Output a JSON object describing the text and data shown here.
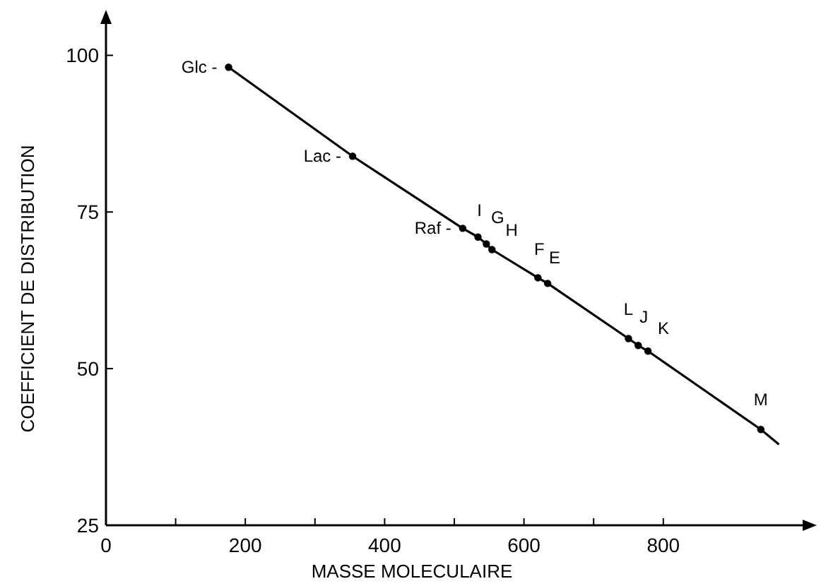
{
  "chart_data": {
    "type": "scatter",
    "xlabel": "MASSE MOLECULAIRE",
    "ylabel": "COEFFICIENT DE DISTRIBUTION",
    "xlim": [
      0,
      1000
    ],
    "ylim": [
      25,
      105
    ],
    "xticks": [
      0,
      {
        "value": 100,
        "label": null
      },
      200,
      {
        "value": 300,
        "label": null
      },
      400,
      {
        "value": 500,
        "label": null
      },
      600,
      {
        "value": 700,
        "label": null
      },
      800
    ],
    "yticks": [
      25,
      50,
      75,
      100
    ],
    "grid": false,
    "series": [
      {
        "type": "line",
        "marker": "none",
        "color": "#000000",
        "x": [
          176,
          354,
          512,
          534,
          546,
          554,
          620,
          634,
          750,
          764,
          778,
          940,
          966
        ],
        "values": [
          98.1,
          83.9,
          72.4,
          71.0,
          69.9,
          69.0,
          64.5,
          63.6,
          54.8,
          53.7,
          52.8,
          40.3,
          37.9
        ]
      },
      {
        "marker": "circle",
        "color": "#000000",
        "x": [
          176,
          354,
          512,
          534,
          546,
          554,
          620,
          634,
          750,
          764,
          778,
          940
        ],
        "values": [
          98.1,
          83.9,
          72.4,
          71.0,
          69.9,
          69.0,
          64.5,
          63.6,
          54.8,
          53.7,
          52.8,
          40.3
        ]
      }
    ],
    "annotations": [
      {
        "text": "Glc -",
        "x": 176,
        "y": 98.1
      },
      {
        "text": "Lac -",
        "x": 354,
        "y": 83.9
      },
      {
        "text": "Raf -",
        "x": 512,
        "y": 72.4
      },
      {
        "text": "I",
        "x": 534,
        "y": 71.0
      },
      {
        "text": "G",
        "x": 546,
        "y": 69.9
      },
      {
        "text": "H",
        "x": 554,
        "y": 69.0
      },
      {
        "text": "F",
        "x": 620,
        "y": 64.5
      },
      {
        "text": "E",
        "x": 634,
        "y": 63.6
      },
      {
        "text": "L",
        "x": 750,
        "y": 54.8
      },
      {
        "text": "J",
        "x": 764,
        "y": 53.7
      },
      {
        "text": "K",
        "x": 778,
        "y": 52.8
      },
      {
        "text": "M",
        "x": 940,
        "y": 40.3
      }
    ]
  }
}
